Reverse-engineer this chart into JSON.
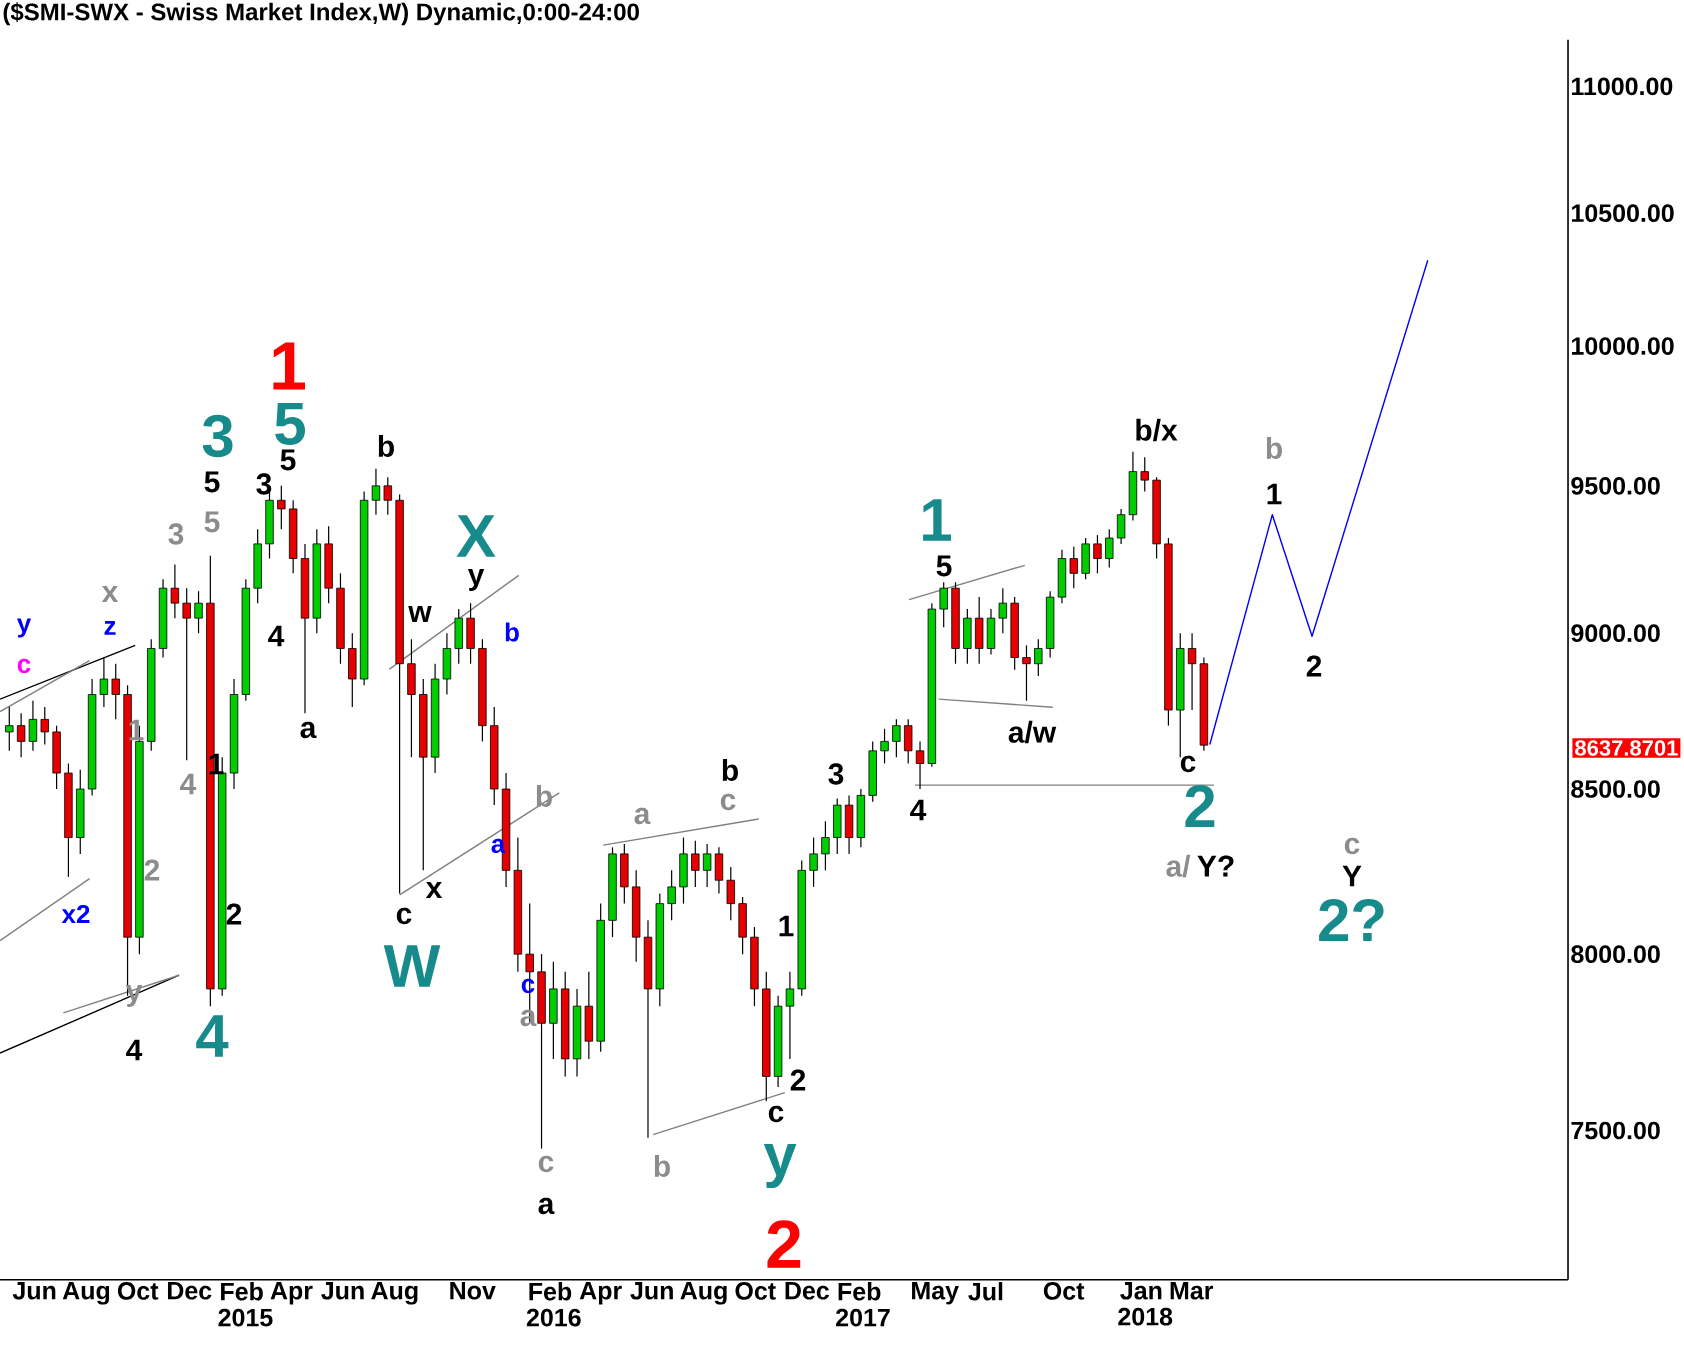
{
  "chart_data": {
    "type": "candlestick",
    "title": "($SMI-SWX - Swiss Market Index,W) Dynamic,0:00-24:00",
    "log": "y",
    "xlim": [
      "2014-04-21",
      "2019-05-21"
    ],
    "ylim": [
      7100,
      11190
    ],
    "yticks": [
      {
        "value": 7500,
        "label": "7500.00"
      },
      {
        "value": 8000,
        "label": "8000.00"
      },
      {
        "value": 8500,
        "label": "8500.00"
      },
      {
        "value": 9000,
        "label": "9000.00"
      },
      {
        "value": 9500,
        "label": "9500.00"
      },
      {
        "value": 10000,
        "label": "10000.00"
      },
      {
        "value": 10500,
        "label": "10500.00"
      },
      {
        "value": 11000,
        "label": "11000.00"
      }
    ],
    "xticks": [
      {
        "value": "2014-06-01",
        "label": "Jun"
      },
      {
        "value": "2014-08-01",
        "label": "Aug"
      },
      {
        "value": "2014-10-01",
        "label": "Oct"
      },
      {
        "value": "2014-12-01",
        "label": "Dec"
      },
      {
        "value": "2015-02-01",
        "label": "Feb 2015"
      },
      {
        "value": "2015-04-01",
        "label": "Apr"
      },
      {
        "value": "2015-06-01",
        "label": "Jun"
      },
      {
        "value": "2015-08-01",
        "label": "Aug"
      },
      {
        "value": "2015-11-01",
        "label": "Nov"
      },
      {
        "value": "2016-02-01",
        "label": "Feb 2016"
      },
      {
        "value": "2016-04-01",
        "label": "Apr"
      },
      {
        "value": "2016-06-01",
        "label": "Jun"
      },
      {
        "value": "2016-08-01",
        "label": "Aug"
      },
      {
        "value": "2016-10-01",
        "label": "Oct"
      },
      {
        "value": "2016-12-01",
        "label": "Dec"
      },
      {
        "value": "2017-02-01",
        "label": "Feb 2017"
      },
      {
        "value": "2017-05-01",
        "label": "May"
      },
      {
        "value": "2017-07-01",
        "label": "Jul"
      },
      {
        "value": "2017-10-01",
        "label": "Oct"
      },
      {
        "value": "2018-01-01",
        "label": "Jan 2018"
      },
      {
        "value": "2018-03-01",
        "label": "Mar"
      }
    ],
    "x": [
      "2014-05-02",
      "2014-05-16",
      "2014-05-30",
      "2014-06-13",
      "2014-06-27",
      "2014-07-11",
      "2014-07-25",
      "2014-08-08",
      "2014-08-22",
      "2014-09-05",
      "2014-09-19",
      "2014-10-03",
      "2014-10-17",
      "2014-10-31",
      "2014-11-14",
      "2014-11-28",
      "2014-12-12",
      "2014-12-26",
      "2015-01-09",
      "2015-01-23",
      "2015-02-06",
      "2015-02-20",
      "2015-03-06",
      "2015-03-20",
      "2015-04-03",
      "2015-04-17",
      "2015-05-01",
      "2015-05-15",
      "2015-05-29",
      "2015-06-12",
      "2015-06-26",
      "2015-07-10",
      "2015-07-24",
      "2015-08-07",
      "2015-08-21",
      "2015-09-04",
      "2015-09-18",
      "2015-10-02",
      "2015-10-16",
      "2015-10-30",
      "2015-11-13",
      "2015-11-27",
      "2015-12-11",
      "2015-12-25",
      "2016-01-08",
      "2016-01-22",
      "2016-02-05",
      "2016-02-19",
      "2016-03-04",
      "2016-03-18",
      "2016-04-01",
      "2016-04-15",
      "2016-04-29",
      "2016-05-13",
      "2016-05-27",
      "2016-06-10",
      "2016-06-24",
      "2016-07-08",
      "2016-07-22",
      "2016-08-05",
      "2016-08-19",
      "2016-09-02",
      "2016-09-16",
      "2016-09-30",
      "2016-10-14",
      "2016-10-28",
      "2016-11-11",
      "2016-11-25",
      "2016-12-09",
      "2016-12-23",
      "2017-01-06",
      "2017-01-20",
      "2017-02-03",
      "2017-02-17",
      "2017-03-03",
      "2017-03-17",
      "2017-03-31",
      "2017-04-14",
      "2017-04-28",
      "2017-05-12",
      "2017-05-26",
      "2017-06-09",
      "2017-06-23",
      "2017-07-07",
      "2017-07-21",
      "2017-08-04",
      "2017-08-18",
      "2017-09-01",
      "2017-09-15",
      "2017-09-29",
      "2017-10-13",
      "2017-10-27",
      "2017-11-10",
      "2017-11-24",
      "2017-12-08",
      "2017-12-22",
      "2018-01-05",
      "2018-01-19",
      "2018-02-02",
      "2018-02-16",
      "2018-03-02",
      "2018-03-16"
    ],
    "ohlc": [
      [
        8680,
        8760,
        8620,
        8700
      ],
      [
        8700,
        8740,
        8600,
        8650
      ],
      [
        8650,
        8780,
        8620,
        8720
      ],
      [
        8720,
        8760,
        8640,
        8680
      ],
      [
        8680,
        8700,
        8500,
        8550
      ],
      [
        8550,
        8580,
        8230,
        8350
      ],
      [
        8350,
        8560,
        8300,
        8500
      ],
      [
        8500,
        8850,
        8480,
        8800
      ],
      [
        8800,
        8920,
        8760,
        8850
      ],
      [
        8850,
        8900,
        8720,
        8800
      ],
      [
        8800,
        8830,
        7880,
        8050
      ],
      [
        8050,
        8700,
        8000,
        8650
      ],
      [
        8650,
        8980,
        8620,
        8950
      ],
      [
        8950,
        9180,
        8920,
        9150
      ],
      [
        9150,
        9230,
        9050,
        9100
      ],
      [
        9100,
        9150,
        8590,
        9050
      ],
      [
        9050,
        9140,
        9000,
        9100
      ],
      [
        9100,
        9260,
        7850,
        7900
      ],
      [
        7900,
        8600,
        7880,
        8550
      ],
      [
        8550,
        8850,
        8500,
        8800
      ],
      [
        8800,
        9180,
        8780,
        9150
      ],
      [
        9150,
        9350,
        9100,
        9300
      ],
      [
        9300,
        9480,
        9250,
        9450
      ],
      [
        9450,
        9500,
        9350,
        9420
      ],
      [
        9420,
        9450,
        9200,
        9250
      ],
      [
        9250,
        9300,
        8740,
        9050
      ],
      [
        9050,
        9350,
        9000,
        9300
      ],
      [
        9300,
        9360,
        9100,
        9150
      ],
      [
        9150,
        9200,
        8900,
        8950
      ],
      [
        8950,
        9000,
        8760,
        8850
      ],
      [
        8850,
        9480,
        8830,
        9450
      ],
      [
        9450,
        9560,
        9400,
        9500
      ],
      [
        9500,
        9530,
        9400,
        9450
      ],
      [
        9450,
        9470,
        8180,
        8900
      ],
      [
        8900,
        8980,
        8600,
        8800
      ],
      [
        8800,
        8850,
        8250,
        8600
      ],
      [
        8600,
        8900,
        8550,
        8850
      ],
      [
        8850,
        9000,
        8800,
        8950
      ],
      [
        8950,
        9080,
        8900,
        9050
      ],
      [
        9050,
        9100,
        8900,
        8950
      ],
      [
        8950,
        8980,
        8650,
        8700
      ],
      [
        8700,
        8760,
        8450,
        8500
      ],
      [
        8500,
        8550,
        8200,
        8250
      ],
      [
        8250,
        8350,
        7950,
        8000
      ],
      [
        8000,
        8150,
        7800,
        7950
      ],
      [
        7950,
        8000,
        7450,
        7800
      ],
      [
        7800,
        7980,
        7700,
        7900
      ],
      [
        7900,
        7950,
        7650,
        7700
      ],
      [
        7700,
        7900,
        7650,
        7850
      ],
      [
        7850,
        7950,
        7700,
        7750
      ],
      [
        7750,
        8150,
        7720,
        8100
      ],
      [
        8100,
        8320,
        8050,
        8300
      ],
      [
        8300,
        8330,
        8150,
        8200
      ],
      [
        8200,
        8250,
        7980,
        8050
      ],
      [
        8050,
        8100,
        7480,
        7900
      ],
      [
        7900,
        8180,
        7850,
        8150
      ],
      [
        8150,
        8250,
        8100,
        8200
      ],
      [
        8200,
        8350,
        8150,
        8300
      ],
      [
        8300,
        8340,
        8200,
        8250
      ],
      [
        8250,
        8330,
        8200,
        8300
      ],
      [
        8300,
        8320,
        8180,
        8220
      ],
      [
        8220,
        8260,
        8100,
        8150
      ],
      [
        8150,
        8170,
        8000,
        8050
      ],
      [
        8050,
        8080,
        7850,
        7900
      ],
      [
        7900,
        7950,
        7580,
        7650
      ],
      [
        7650,
        7880,
        7620,
        7850
      ],
      [
        7850,
        7950,
        7700,
        7900
      ],
      [
        7900,
        8280,
        7880,
        8250
      ],
      [
        8250,
        8350,
        8200,
        8300
      ],
      [
        8300,
        8400,
        8250,
        8350
      ],
      [
        8350,
        8470,
        8300,
        8450
      ],
      [
        8450,
        8480,
        8300,
        8350
      ],
      [
        8350,
        8500,
        8320,
        8480
      ],
      [
        8480,
        8650,
        8460,
        8620
      ],
      [
        8620,
        8690,
        8580,
        8650
      ],
      [
        8650,
        8720,
        8600,
        8700
      ],
      [
        8700,
        8720,
        8580,
        8620
      ],
      [
        8620,
        8650,
        8500,
        8580
      ],
      [
        8580,
        9100,
        8570,
        9080
      ],
      [
        9080,
        9170,
        9020,
        9150
      ],
      [
        9150,
        9170,
        8900,
        8950
      ],
      [
        8950,
        9080,
        8900,
        9050
      ],
      [
        9050,
        9120,
        8900,
        8950
      ],
      [
        8950,
        9080,
        8930,
        9050
      ],
      [
        9050,
        9150,
        9000,
        9100
      ],
      [
        9100,
        9120,
        8880,
        8920
      ],
      [
        8920,
        8960,
        8780,
        8900
      ],
      [
        8900,
        8980,
        8860,
        8950
      ],
      [
        8950,
        9140,
        8920,
        9120
      ],
      [
        9120,
        9280,
        9100,
        9250
      ],
      [
        9250,
        9290,
        9150,
        9200
      ],
      [
        9200,
        9320,
        9180,
        9300
      ],
      [
        9300,
        9330,
        9200,
        9250
      ],
      [
        9250,
        9350,
        9220,
        9320
      ],
      [
        9320,
        9420,
        9300,
        9400
      ],
      [
        9400,
        9620,
        9380,
        9550
      ],
      [
        9550,
        9600,
        9480,
        9520
      ],
      [
        9520,
        9530,
        9250,
        9300
      ],
      [
        9300,
        9320,
        8700,
        8750
      ],
      [
        8750,
        9000,
        8600,
        8950
      ],
      [
        8950,
        9000,
        8750,
        8900
      ],
      [
        8900,
        8920,
        8620,
        8637.87
      ]
    ],
    "colors": [
      "#00cc00",
      "#e60000",
      "#00cc00",
      "#e60000",
      "#e60000",
      "#e60000",
      "#00cc00",
      "#00cc00",
      "#00cc00",
      "#e60000",
      "#e60000",
      "#00cc00",
      "#00cc00",
      "#00cc00",
      "#e60000",
      "#e60000",
      "#00cc00",
      "#e60000",
      "#00cc00",
      "#00cc00",
      "#00cc00",
      "#00cc00",
      "#00cc00",
      "#e60000",
      "#e60000",
      "#e60000",
      "#00cc00",
      "#e60000",
      "#e60000",
      "#e60000",
      "#00cc00",
      "#00cc00",
      "#e60000",
      "#e60000",
      "#e60000",
      "#e60000",
      "#00cc00",
      "#00cc00",
      "#00cc00",
      "#e60000",
      "#e60000",
      "#e60000",
      "#e60000",
      "#e60000",
      "#e60000",
      "#e60000",
      "#00cc00",
      "#e60000",
      "#00cc00",
      "#e60000",
      "#00cc00",
      "#00cc00",
      "#e60000",
      "#e60000",
      "#e60000",
      "#00cc00",
      "#00cc00",
      "#00cc00",
      "#e60000",
      "#00cc00",
      "#e60000",
      "#e60000",
      "#e60000",
      "#e60000",
      "#e60000",
      "#00cc00",
      "#00cc00",
      "#00cc00",
      "#00cc00",
      "#00cc00",
      "#00cc00",
      "#e60000",
      "#00cc00",
      "#00cc00",
      "#00cc00",
      "#00cc00",
      "#e60000",
      "#e60000",
      "#00cc00",
      "#00cc00",
      "#e60000",
      "#00cc00",
      "#e60000",
      "#00cc00",
      "#00cc00",
      "#e60000",
      "#e60000",
      "#00cc00",
      "#00cc00",
      "#00cc00",
      "#e60000",
      "#00cc00",
      "#e60000",
      "#00cc00",
      "#00cc00",
      "#00cc00",
      "#e60000",
      "#e60000",
      "#e60000",
      "#00cc00",
      "#e60000",
      "#e60000"
    ],
    "series": [
      {
        "type": "line",
        "color": "#000000",
        "x": [
          "2014-04-21",
          "2014-09-28"
        ],
        "values": [
          8785,
          8960
        ]
      },
      {
        "type": "line",
        "color": "#808080",
        "x": [
          "2014-04-21",
          "2014-08-05"
        ],
        "values": [
          8745,
          8910
        ]
      },
      {
        "type": "line",
        "color": "#808080",
        "x": [
          "2014-04-21",
          "2014-08-05"
        ],
        "values": [
          8040,
          8225
        ]
      },
      {
        "type": "line",
        "color": "#000000",
        "x": [
          "2014-04-21",
          "2014-11-19"
        ],
        "values": [
          7716,
          7940
        ]
      },
      {
        "type": "line",
        "color": "#808080",
        "x": [
          "2014-07-05",
          "2014-11-19"
        ],
        "values": [
          7831,
          7940
        ]
      },
      {
        "type": "line",
        "color": "#808080",
        "x": [
          "2015-07-26",
          "2015-12-26"
        ],
        "values": [
          8882,
          9193
        ]
      },
      {
        "type": "line",
        "color": "#808080",
        "x": [
          "2015-08-07",
          "2016-02-12"
        ],
        "values": [
          8176,
          8488
        ]
      },
      {
        "type": "line",
        "color": "#808080",
        "x": [
          "2016-04-04",
          "2016-10-05"
        ],
        "values": [
          8327,
          8407
        ]
      },
      {
        "type": "line",
        "color": "#808080",
        "x": [
          "2016-06-02",
          "2016-11-05"
        ],
        "values": [
          7488,
          7604
        ]
      },
      {
        "type": "line",
        "color": "#808080",
        "x": [
          "2017-04-01",
          "2017-08-16"
        ],
        "values": [
          9112,
          9227
        ]
      },
      {
        "type": "line",
        "color": "#808080",
        "x": [
          "2017-05-06",
          "2017-09-18"
        ],
        "values": [
          8785,
          8759
        ]
      },
      {
        "type": "line",
        "color": "#808080",
        "x": [
          "2017-04-08",
          "2018-03-28"
        ],
        "values": [
          8512,
          8512
        ]
      },
      {
        "type": "line",
        "color": "#0000ff",
        "x": [
          "2018-03-23",
          "2018-06-05",
          "2018-07-22",
          "2018-12-06"
        ],
        "values": [
          8640,
          9400,
          8990,
          10320
        ]
      }
    ],
    "annotations": [
      "y",
      "c",
      "x",
      "z",
      "3",
      "5",
      "5",
      "3",
      "1",
      "5",
      "5",
      "3",
      "b",
      "4",
      "a",
      "1",
      "4",
      "1",
      "2",
      "x2",
      "2",
      "y",
      "4",
      "4",
      "X",
      "y",
      "w",
      "b",
      "a",
      "b",
      "x",
      "c",
      "W",
      "c",
      "a",
      "c",
      "a",
      "a",
      "b",
      "c",
      "b",
      "1",
      "2",
      "c",
      "y",
      "2",
      "3",
      "4",
      "1",
      "5",
      "a/w",
      "b/x",
      "b",
      "1",
      "2",
      "c",
      "2",
      "a/",
      "Y?",
      "c",
      "Y",
      "2?",
      "8637.8701"
    ]
  }
}
